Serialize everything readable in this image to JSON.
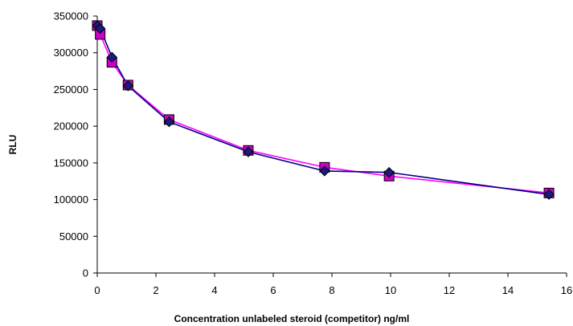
{
  "chart_data": {
    "type": "line",
    "title": "",
    "xlabel": "Concentration unlabeled steroid (competitor) ng/ml",
    "ylabel": "RLU",
    "xlim": [
      0,
      16
    ],
    "ylim": [
      0,
      350000
    ],
    "x_ticks": [
      0,
      2,
      4,
      6,
      8,
      10,
      12,
      14,
      16
    ],
    "y_ticks": [
      0,
      50000,
      100000,
      150000,
      200000,
      250000,
      300000,
      350000
    ],
    "x_tick_labels": [
      "0",
      "2",
      "4",
      "6",
      "8",
      "10",
      "12",
      "14",
      "16"
    ],
    "y_tick_labels": [
      "0",
      "50000",
      "100000",
      "150000",
      "200000",
      "250000",
      "300000",
      "350000"
    ],
    "grid": false,
    "legend": "none",
    "series": [
      {
        "marker": "square",
        "line_color": "#ff00ff",
        "marker_fill": "#cc00cc",
        "x": [
          0.0,
          0.1,
          0.5,
          1.05,
          2.45,
          5.15,
          7.75,
          9.95,
          15.4
        ],
        "y": [
          337000,
          325000,
          287000,
          256000,
          209000,
          167000,
          144000,
          132000,
          109000
        ]
      },
      {
        "marker": "diamond",
        "line_color": "#000080",
        "marker_fill": "#1a1a80",
        "x": [
          0.0,
          0.1,
          0.5,
          1.05,
          2.45,
          5.15,
          7.75,
          9.95,
          15.4
        ],
        "y": [
          337000,
          333000,
          294000,
          255000,
          206000,
          165000,
          139000,
          137000,
          107000
        ]
      }
    ]
  }
}
